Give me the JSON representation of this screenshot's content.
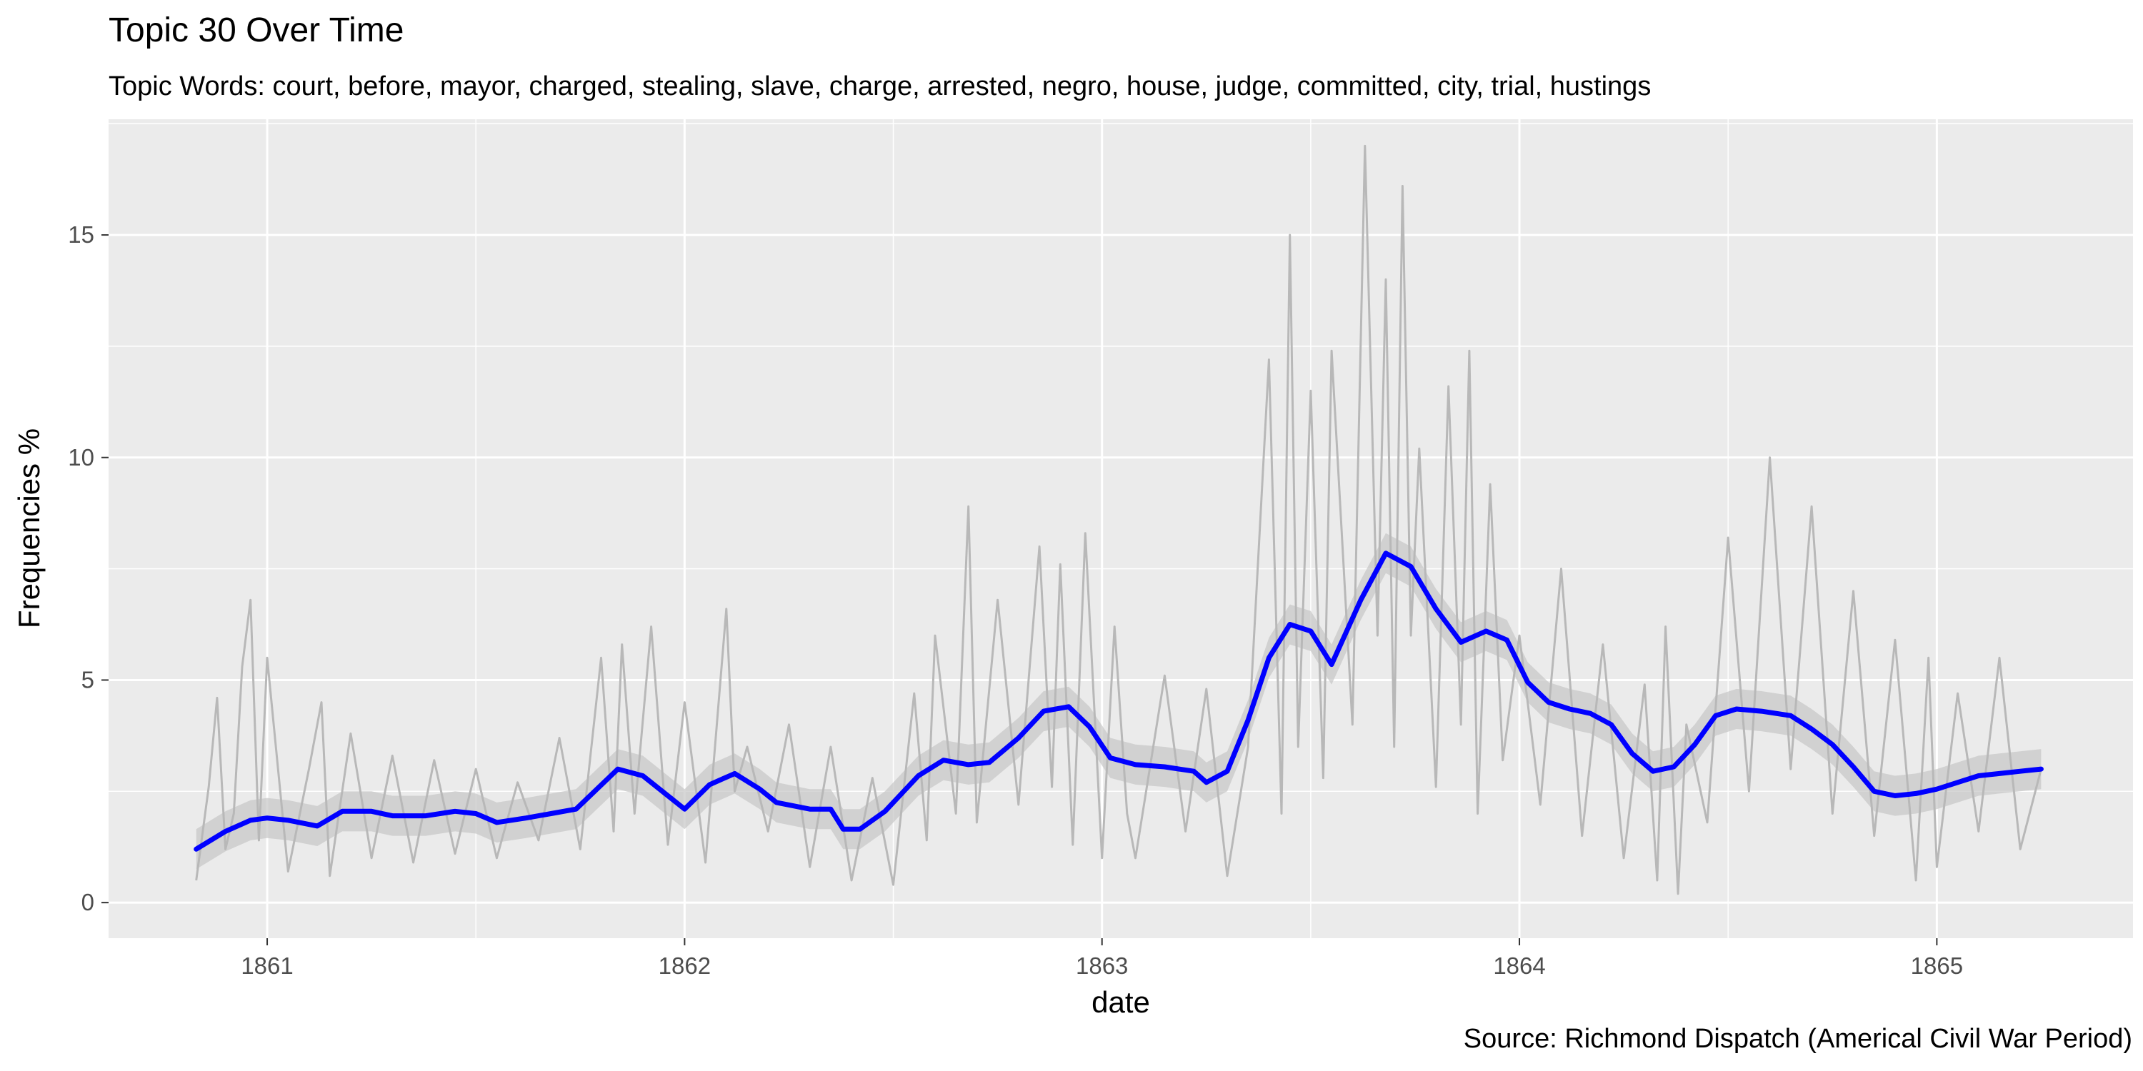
{
  "chart_data": {
    "type": "line",
    "title": "Topic 30 Over Time",
    "subtitle": "Topic Words: court, before, mayor, charged, stealing, slave, charge, arrested, negro, house, judge, committed, city, trial, hustings",
    "caption": "Source: Richmond Dispatch (Americal Civil War Period)",
    "xlabel": "date",
    "ylabel": "Frequencies %",
    "xlim": [
      1860.62,
      1865.47
    ],
    "ylim": [
      -0.8,
      17.6
    ],
    "x_ticks": [
      1861,
      1862,
      1863,
      1864,
      1865
    ],
    "x_tick_labels": [
      "1861",
      "1862",
      "1863",
      "1864",
      "1865"
    ],
    "y_ticks": [
      0,
      5,
      10,
      15
    ],
    "y_tick_labels": [
      "0",
      "5",
      "10",
      "15"
    ],
    "grid": true,
    "colors": {
      "panel": "#ebebeb",
      "grid": "#ffffff",
      "raw_series": "#b8b8b8",
      "smooth_series": "#0000ff",
      "ribbon": "#c6c6c6"
    },
    "series": [
      {
        "role": "raw",
        "x": [
          1860.83,
          1860.86,
          1860.88,
          1860.9,
          1860.92,
          1860.94,
          1860.96,
          1860.98,
          1861.0,
          1861.05,
          1861.1,
          1861.13,
          1861.15,
          1861.2,
          1861.25,
          1861.3,
          1861.35,
          1861.4,
          1861.45,
          1861.5,
          1861.55,
          1861.6,
          1861.65,
          1861.7,
          1861.75,
          1861.8,
          1861.83,
          1861.85,
          1861.88,
          1861.92,
          1861.96,
          1862.0,
          1862.05,
          1862.1,
          1862.12,
          1862.15,
          1862.2,
          1862.25,
          1862.3,
          1862.35,
          1862.4,
          1862.45,
          1862.5,
          1862.55,
          1862.58,
          1862.6,
          1862.65,
          1862.68,
          1862.7,
          1862.75,
          1862.8,
          1862.85,
          1862.88,
          1862.9,
          1862.93,
          1862.96,
          1863.0,
          1863.03,
          1863.06,
          1863.08,
          1863.15,
          1863.2,
          1863.25,
          1863.3,
          1863.35,
          1863.4,
          1863.43,
          1863.45,
          1863.47,
          1863.5,
          1863.53,
          1863.55,
          1863.6,
          1863.63,
          1863.66,
          1863.68,
          1863.7,
          1863.72,
          1863.74,
          1863.76,
          1863.8,
          1863.83,
          1863.86,
          1863.88,
          1863.9,
          1863.93,
          1863.96,
          1864.0,
          1864.05,
          1864.1,
          1864.15,
          1864.2,
          1864.25,
          1864.3,
          1864.33,
          1864.35,
          1864.38,
          1864.4,
          1864.45,
          1864.5,
          1864.55,
          1864.6,
          1864.65,
          1864.7,
          1864.75,
          1864.8,
          1864.85,
          1864.9,
          1864.95,
          1864.98,
          1865.0,
          1865.05,
          1865.1,
          1865.15,
          1865.2,
          1865.25
        ],
        "values": [
          0.5,
          2.6,
          4.6,
          1.2,
          2.0,
          5.3,
          6.8,
          1.4,
          5.5,
          0.7,
          3.0,
          4.5,
          0.6,
          3.8,
          1.0,
          3.3,
          0.9,
          3.2,
          1.1,
          3.0,
          1.0,
          2.7,
          1.4,
          3.7,
          1.2,
          5.5,
          1.6,
          5.8,
          2.0,
          6.2,
          1.3,
          4.5,
          0.9,
          6.6,
          2.5,
          3.5,
          1.6,
          4.0,
          0.8,
          3.5,
          0.5,
          2.8,
          0.4,
          4.7,
          1.4,
          6.0,
          2.0,
          8.9,
          1.8,
          6.8,
          2.2,
          8.0,
          2.6,
          7.6,
          1.3,
          8.3,
          1.0,
          6.2,
          2.0,
          1.0,
          5.1,
          1.6,
          4.8,
          0.6,
          3.5,
          12.2,
          2.0,
          15.0,
          3.5,
          11.5,
          2.8,
          12.4,
          4.0,
          17.0,
          6.0,
          14.0,
          3.5,
          16.1,
          6.0,
          10.2,
          2.6,
          11.6,
          4.0,
          12.4,
          2.0,
          9.4,
          3.2,
          6.0,
          2.2,
          7.5,
          1.5,
          5.8,
          1.0,
          4.9,
          0.5,
          6.2,
          0.2,
          4.0,
          1.8,
          8.2,
          2.5,
          10.0,
          3.0,
          8.9,
          2.0,
          7.0,
          1.5,
          5.9,
          0.5,
          5.5,
          0.8,
          4.7,
          1.6,
          5.5,
          1.2,
          3.0
        ]
      },
      {
        "role": "smoothed",
        "x": [
          1860.83,
          1860.9,
          1860.96,
          1861.0,
          1861.05,
          1861.12,
          1861.18,
          1861.25,
          1861.3,
          1861.38,
          1861.45,
          1861.5,
          1861.55,
          1861.62,
          1861.68,
          1861.74,
          1861.84,
          1861.9,
          1861.96,
          1862.0,
          1862.06,
          1862.12,
          1862.18,
          1862.22,
          1862.3,
          1862.35,
          1862.38,
          1862.42,
          1862.48,
          1862.56,
          1862.62,
          1862.68,
          1862.73,
          1862.8,
          1862.86,
          1862.92,
          1862.97,
          1863.02,
          1863.08,
          1863.15,
          1863.22,
          1863.25,
          1863.3,
          1863.35,
          1863.4,
          1863.45,
          1863.5,
          1863.55,
          1863.62,
          1863.68,
          1863.74,
          1863.8,
          1863.86,
          1863.92,
          1863.97,
          1864.02,
          1864.07,
          1864.12,
          1864.17,
          1864.22,
          1864.27,
          1864.32,
          1864.37,
          1864.42,
          1864.47,
          1864.52,
          1864.58,
          1864.65,
          1864.7,
          1864.75,
          1864.8,
          1864.85,
          1864.9,
          1864.95,
          1865.0,
          1865.05,
          1865.1,
          1865.15,
          1865.2,
          1865.25
        ],
        "values": [
          1.2,
          1.6,
          1.85,
          1.9,
          1.85,
          1.72,
          2.05,
          2.05,
          1.95,
          1.95,
          2.05,
          2.0,
          1.8,
          1.9,
          2.0,
          2.1,
          3.0,
          2.85,
          2.4,
          2.1,
          2.65,
          2.9,
          2.55,
          2.25,
          2.1,
          2.1,
          1.65,
          1.65,
          2.05,
          2.85,
          3.2,
          3.1,
          3.15,
          3.7,
          4.3,
          4.4,
          3.95,
          3.25,
          3.1,
          3.05,
          2.95,
          2.7,
          2.95,
          4.1,
          5.5,
          6.25,
          6.1,
          5.35,
          6.8,
          7.85,
          7.55,
          6.6,
          5.85,
          6.1,
          5.9,
          4.95,
          4.5,
          4.35,
          4.25,
          4.0,
          3.35,
          2.95,
          3.05,
          3.55,
          4.2,
          4.35,
          4.3,
          4.2,
          3.9,
          3.55,
          3.05,
          2.5,
          2.4,
          2.45,
          2.55,
          2.7,
          2.85,
          2.9,
          2.95,
          3.0
        ]
      }
    ]
  }
}
